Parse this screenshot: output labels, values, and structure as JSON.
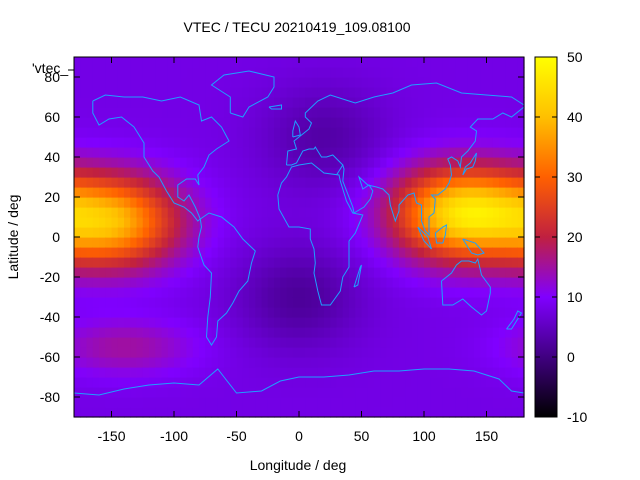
{
  "chart_data": {
    "type": "heatmap",
    "title": "VTEC / TECU 20210419_109.08100",
    "xlabel": "Longitude / deg",
    "ylabel": "Latitude / deg",
    "xlim": [
      -180,
      180
    ],
    "ylim": [
      -90,
      90
    ],
    "x_ticks": [
      -150,
      -100,
      -50,
      0,
      50,
      100,
      150
    ],
    "y_ticks": [
      -80,
      -60,
      -40,
      -20,
      0,
      20,
      40,
      60,
      80
    ],
    "x_tick_labels": [
      "-150",
      "-100",
      "-50",
      "0",
      "50",
      "100",
      "150"
    ],
    "y_tick_labels": [
      "-80",
      "-60",
      "-40",
      "-20",
      "0",
      "20",
      "40",
      "60",
      "80"
    ],
    "legend_label": "'vtec_",
    "legend_position": "top-left",
    "colorbar": {
      "min": -10,
      "max": 50,
      "ticks": [
        -10,
        0,
        10,
        20,
        30,
        40,
        50
      ],
      "tick_labels": [
        "-10",
        "0",
        "10",
        "20",
        "30",
        "40",
        "50"
      ],
      "palette": [
        "#000000",
        "#400080",
        "#8000ff",
        "#c02040",
        "#ff6000",
        "#ffc000",
        "#ffff00"
      ]
    },
    "background_level": 8,
    "features": [
      {
        "name": "pacific-maximum",
        "lon": -150,
        "lat": 8,
        "peak": 38
      },
      {
        "name": "asia-pacific-maximum",
        "lon": 130,
        "lat": 12,
        "peak": 44
      },
      {
        "name": "south-pacific-band",
        "lon": -140,
        "lat": -55,
        "peak": 15
      },
      {
        "name": "south-atlantic-minimum",
        "lon": 0,
        "lat": -30,
        "peak": 2
      },
      {
        "name": "europe-minimum",
        "lon": 20,
        "lat": 50,
        "peak": 3
      }
    ]
  }
}
